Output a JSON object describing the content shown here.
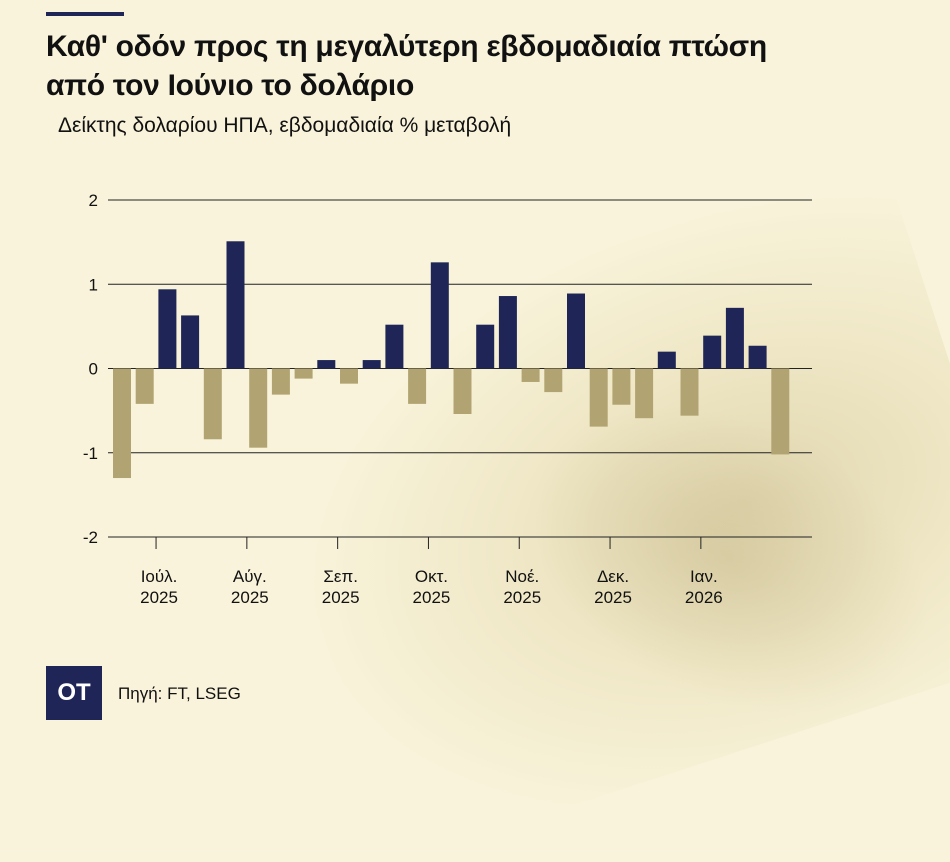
{
  "header": {
    "title_line1": "Καθ' οδόν προς τη μεγαλύτερη εβδομαδιαία πτώση",
    "title_line2": "από τον Ιούνιο το δολάριο",
    "subtitle": "Δείκτης δολαρίου ΗΠΑ, εβδομαδιαία % μεταβολή"
  },
  "footer": {
    "logo": "OT",
    "source": "Πηγή: FT, LSEG"
  },
  "colors": {
    "positive": "#1f2557",
    "negative": "#b2a472",
    "grid": "#222222"
  },
  "chart_data": {
    "type": "bar",
    "title": "Δείκτης δολαρίου ΗΠΑ, εβδομαδιαία % μεταβολή",
    "ylim": [
      -2,
      2
    ],
    "yticks": [
      "2",
      "1",
      "0",
      "-1",
      "-2"
    ],
    "ytick_values": [
      2,
      1,
      0,
      -1,
      -2
    ],
    "xlabel": "",
    "ylabel": "",
    "values": [
      -1.3,
      -0.42,
      0.94,
      0.63,
      -0.84,
      1.51,
      -0.94,
      -0.31,
      -0.12,
      0.1,
      -0.18,
      0.1,
      0.52,
      -0.42,
      1.26,
      -0.54,
      0.52,
      0.86,
      -0.16,
      -0.28,
      0.89,
      -0.69,
      -0.43,
      -0.59,
      0.2,
      -0.56,
      0.39,
      0.72,
      0.27,
      -1.02
    ],
    "month_labels": [
      {
        "month": "Ιούλ.",
        "year": "2025",
        "bar_index": 1.5
      },
      {
        "month": "Αύγ.",
        "year": "2025",
        "bar_index": 5.5
      },
      {
        "month": "Σεπ.",
        "year": "2025",
        "bar_index": 9.5
      },
      {
        "month": "Οκτ.",
        "year": "2025",
        "bar_index": 13.5
      },
      {
        "month": "Νοέ.",
        "year": "2025",
        "bar_index": 17.5
      },
      {
        "month": "Δεκ.",
        "year": "2025",
        "bar_index": 21.5
      },
      {
        "month": "Ιαν.",
        "year": "2026",
        "bar_index": 25.5
      }
    ]
  }
}
